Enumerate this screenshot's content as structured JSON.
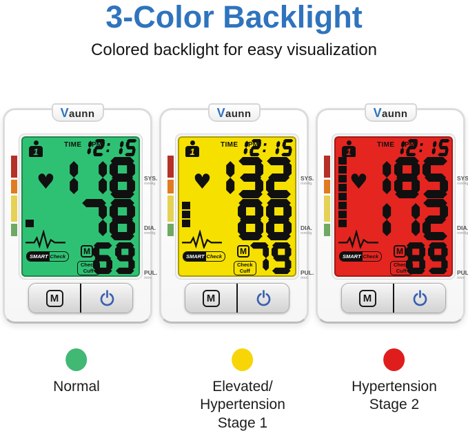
{
  "header": {
    "title": "3-Color Backlight",
    "subtitle": "Colored backlight for easy visualization",
    "title_color": "#2f74bd"
  },
  "brand": {
    "logo_v": "V",
    "logo_rest": "aunn"
  },
  "display_labels": {
    "time": "TIME",
    "ampm": "PM",
    "user_number": "1",
    "sys": "SYS.",
    "sys_unit": "mmHg",
    "dia": "DIA.",
    "dia_unit": "mmHg",
    "pul": "PUL.",
    "pul_unit": "/min",
    "memory_indicator": "M",
    "smart_badge_left": "SMART",
    "smart_badge_right": "Check",
    "cuff_line1": "Check",
    "cuff_line2": "Cuff"
  },
  "devices": [
    {
      "name": "normal",
      "backlight_hex": "#2fc173",
      "time": "12:15",
      "sys": "118",
      "dia": "78",
      "pul": "69",
      "level_squares": 1
    },
    {
      "name": "elevated-hypertension-stage-1",
      "backlight_hex": "#f5e000",
      "time": "12:15",
      "sys": "132",
      "dia": "88",
      "pul": "79",
      "level_squares": 3
    },
    {
      "name": "hypertension-stage-2",
      "backlight_hex": "#e52520",
      "time": "12:15",
      "sys": "185",
      "dia": "112",
      "pul": "89",
      "level_squares": 8
    }
  ],
  "buttons": {
    "memory_label": "M"
  },
  "risk_bar_colors": [
    "#b53028",
    "#e07b22",
    "#e5d155",
    "#6fa963"
  ],
  "accent": {
    "power_icon_color": "#3a5fae"
  },
  "legend": [
    {
      "dot_color": "#41b873",
      "label": "Normal"
    },
    {
      "dot_color": "#f8d506",
      "label": "Elevated/\nHypertension\nStage 1"
    },
    {
      "dot_color": "#e01d1d",
      "label": "Hypertension\nStage 2"
    }
  ]
}
